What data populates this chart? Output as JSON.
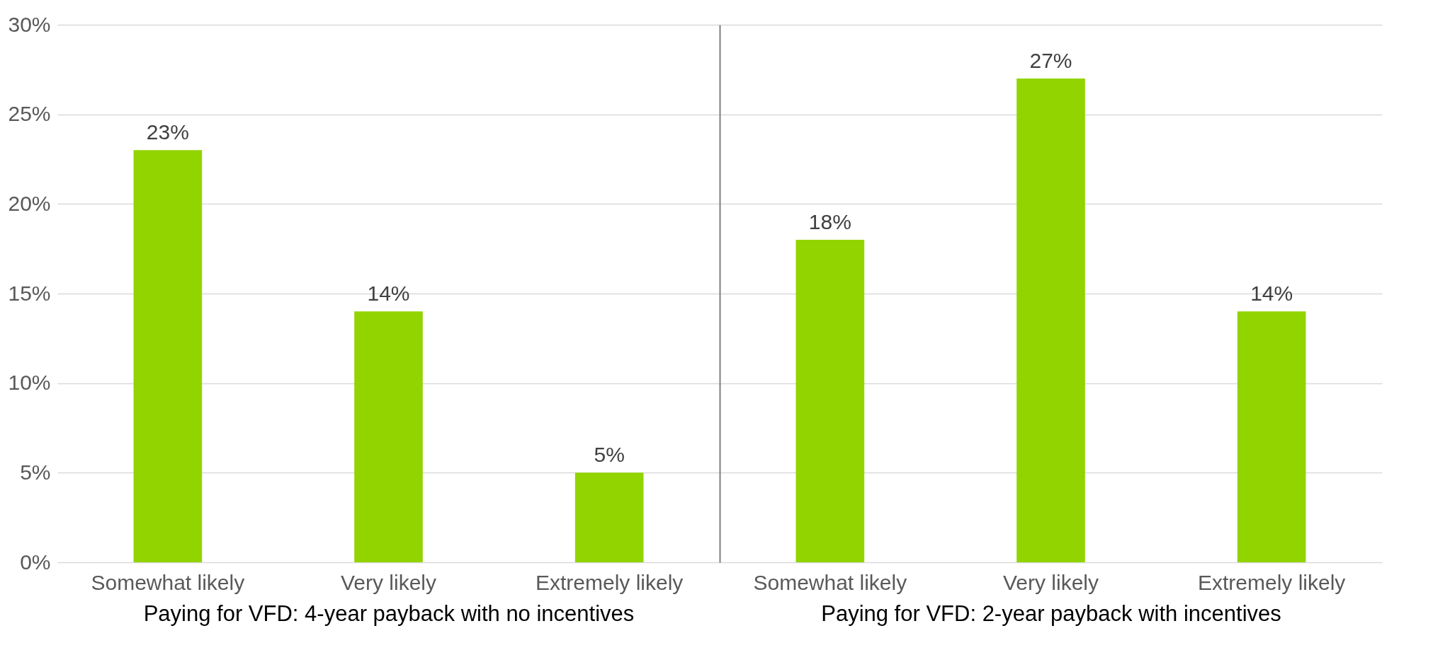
{
  "chart_data": [
    {
      "type": "bar",
      "xlabel": "Paying for VFD: 4-year payback with no incentives",
      "categories": [
        "Somewhat likely",
        "Very likely",
        "Extremely likely"
      ],
      "values": [
        23,
        14,
        5
      ],
      "value_labels": [
        "23%",
        "14%",
        "5%"
      ],
      "color": "#92d400",
      "ylim": [
        0,
        30
      ],
      "yticks": [
        {
          "value": 0,
          "label": "0%"
        },
        {
          "value": 5,
          "label": "5%"
        },
        {
          "value": 10,
          "label": "10%"
        },
        {
          "value": 15,
          "label": "15%"
        },
        {
          "value": 20,
          "label": "20%"
        },
        {
          "value": 25,
          "label": "25%"
        },
        {
          "value": 30,
          "label": "30%"
        }
      ],
      "grid": "y"
    },
    {
      "type": "bar",
      "xlabel": "Paying for VFD: 2-year payback with incentives",
      "categories": [
        "Somewhat likely",
        "Very likely",
        "Extremely likely"
      ],
      "values": [
        18,
        27,
        14
      ],
      "value_labels": [
        "18%",
        "27%",
        "14%"
      ],
      "color": "#92d400",
      "ylim": [
        0,
        30
      ],
      "yticks": [
        0,
        5,
        10,
        15,
        20,
        25,
        30
      ],
      "grid": "y",
      "tick_labels": "x"
    }
  ]
}
